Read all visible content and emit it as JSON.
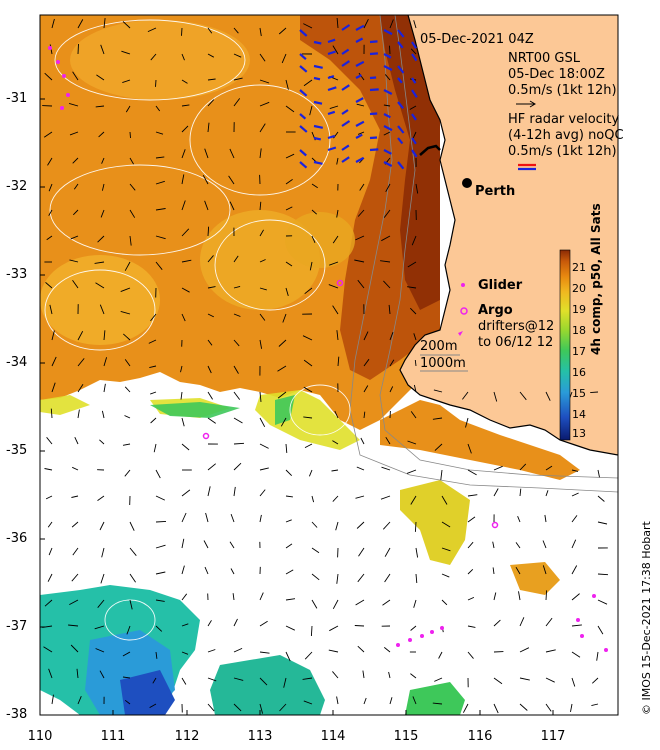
{
  "header": {
    "timestamp": "05-Dec-2021 04Z"
  },
  "legend": {
    "model_name": "NRT00 GSL",
    "model_time": "05-Dec 18:00Z",
    "model_scale": "0.5m/s (1kt 12h)",
    "radar_line1": "HF radar velocity",
    "radar_line2": "(4-12h avg) noQC",
    "radar_scale": "0.5m/s (1kt 12h)",
    "glider_label": "Glider",
    "argo_label": "Argo",
    "drifters_line1": "drifters@12",
    "drifters_line2": "to 06/12 12",
    "iso200": "200m",
    "iso1000": "1000m"
  },
  "places": {
    "city": "Perth"
  },
  "axes": {
    "lat_ticks": [
      "-31",
      "-32",
      "-33",
      "-34",
      "-35",
      "-36",
      "-37",
      "-38"
    ],
    "lon_ticks": [
      "110",
      "111",
      "112",
      "113",
      "114",
      "115",
      "116",
      "117"
    ]
  },
  "colorbar": {
    "title": "4h comp, p50, All Sats",
    "ticks": [
      "21",
      "20",
      "19",
      "18",
      "17",
      "16",
      "15",
      "14",
      "13"
    ],
    "min": 12.5,
    "max": 21.5,
    "colors": [
      "#0a1a6e",
      "#1e4fc0",
      "#2a9bd8",
      "#25c0a8",
      "#3ec85a",
      "#9ad82e",
      "#e0e02a",
      "#f0b820",
      "#e88a10",
      "#c85a0a",
      "#8a2a05"
    ]
  },
  "credit": {
    "text": "© IMOS 15-Dec-2021 17:38 Hobart"
  },
  "colors": {
    "land": "#fcc896",
    "no_data": "#ffffff",
    "model_arrows": "#000000",
    "radar_arrows": "#1a22dd",
    "glider_argo": "#ee22ee"
  }
}
